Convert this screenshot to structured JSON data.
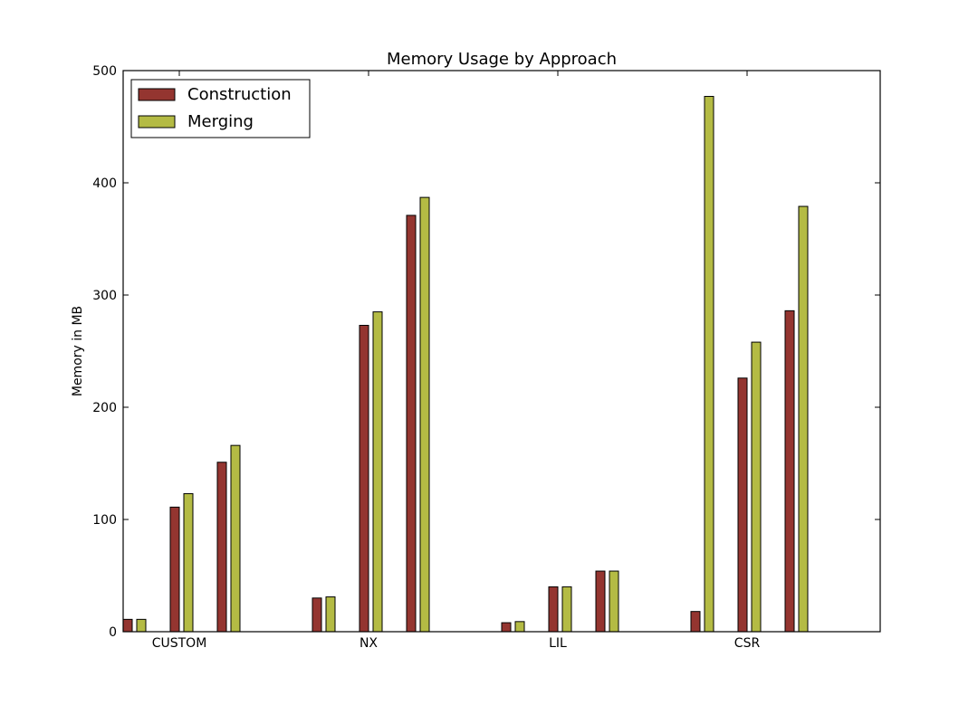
{
  "chart_data": {
    "type": "bar",
    "title": "Memory Usage by Approach",
    "xlabel": "",
    "ylabel": "Memory in MB",
    "ylim": [
      0,
      500
    ],
    "yticks": [
      0,
      100,
      200,
      300,
      400,
      500
    ],
    "grid": false,
    "legend_position": "top-left",
    "categories": [
      "CUSTOM",
      "NX",
      "LIL",
      "CSR"
    ],
    "series": [
      {
        "name": "Construction",
        "color": "#943530",
        "values": [
          [
            11,
            111,
            151
          ],
          [
            30,
            273,
            371
          ],
          [
            8,
            40,
            54
          ],
          [
            18,
            226,
            286
          ]
        ]
      },
      {
        "name": "Merging",
        "color": "#b4bb44",
        "values": [
          [
            11,
            123,
            166
          ],
          [
            31,
            285,
            387
          ],
          [
            9,
            40,
            54
          ],
          [
            477,
            258,
            379
          ]
        ]
      }
    ]
  }
}
